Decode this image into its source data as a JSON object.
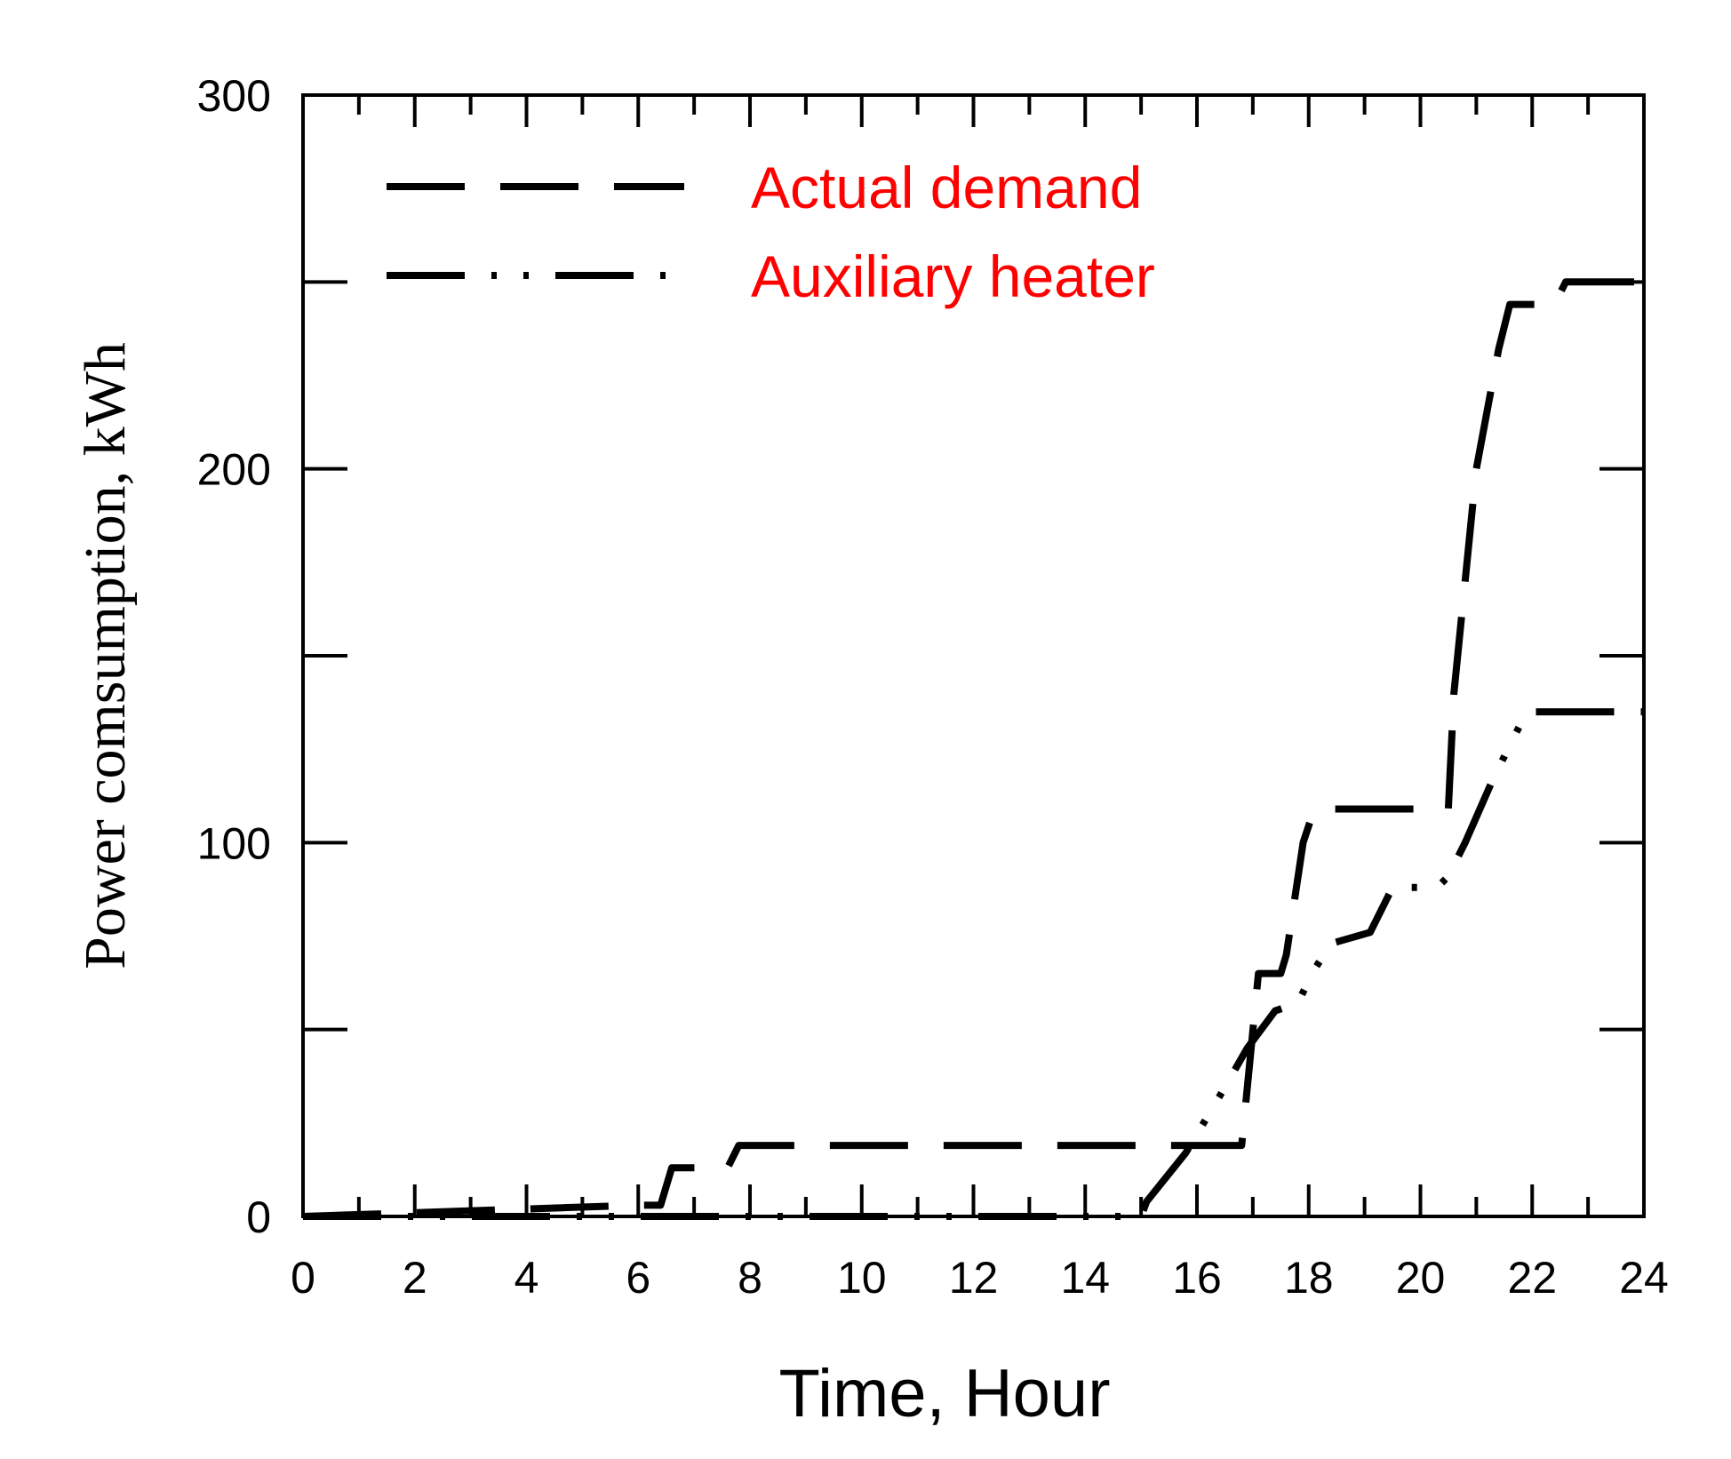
{
  "chart_data": {
    "type": "line",
    "title": "",
    "xlabel": "Time, Hour",
    "ylabel": "Power comsumption, kWh",
    "xlim": [
      0,
      24
    ],
    "ylim": [
      0,
      300
    ],
    "x_ticks": [
      0,
      2,
      4,
      6,
      8,
      10,
      12,
      14,
      16,
      18,
      20,
      22,
      24
    ],
    "x_tick_labels": [
      "0",
      "2",
      "4",
      "6",
      "8",
      "10",
      "12",
      "14",
      "16",
      "18",
      "20",
      "22",
      "24"
    ],
    "y_ticks": [
      0,
      100,
      200,
      300
    ],
    "y_tick_labels": [
      "0",
      "100",
      "200",
      "300"
    ],
    "y_minor_ticks": [
      50,
      150,
      250
    ],
    "grid": false,
    "legend_position": "top-left",
    "legend_text_color": "#ff0000",
    "line_color": "#000000",
    "series": [
      {
        "name": "Actual demand",
        "style": "long-dash",
        "x": [
          0,
          6,
          6.4,
          6.6,
          7.6,
          7.8,
          16.8,
          17.1,
          17.5,
          17.6,
          17.9,
          18.1,
          20.5,
          20.6,
          21,
          21.4,
          21.6,
          22.4,
          22.6,
          24
        ],
        "y": [
          0,
          3,
          3,
          13,
          13,
          19,
          19,
          65,
          65,
          70,
          100,
          109,
          109,
          140,
          200,
          232,
          244,
          244,
          250,
          250
        ]
      },
      {
        "name": "Auxiliary heater",
        "style": "dash-dot-dot",
        "x": [
          0,
          15,
          15.1,
          15.8,
          16.4,
          16.9,
          17.4,
          17.8,
          18.1,
          18.4,
          19.1,
          19.5,
          20.3,
          20.5,
          20.8,
          21.3,
          21.9,
          24
        ],
        "y": [
          0,
          0,
          4,
          17,
          32,
          45,
          55,
          57,
          66,
          73,
          76,
          88,
          88,
          91,
          100,
          117,
          135,
          135
        ]
      }
    ]
  }
}
